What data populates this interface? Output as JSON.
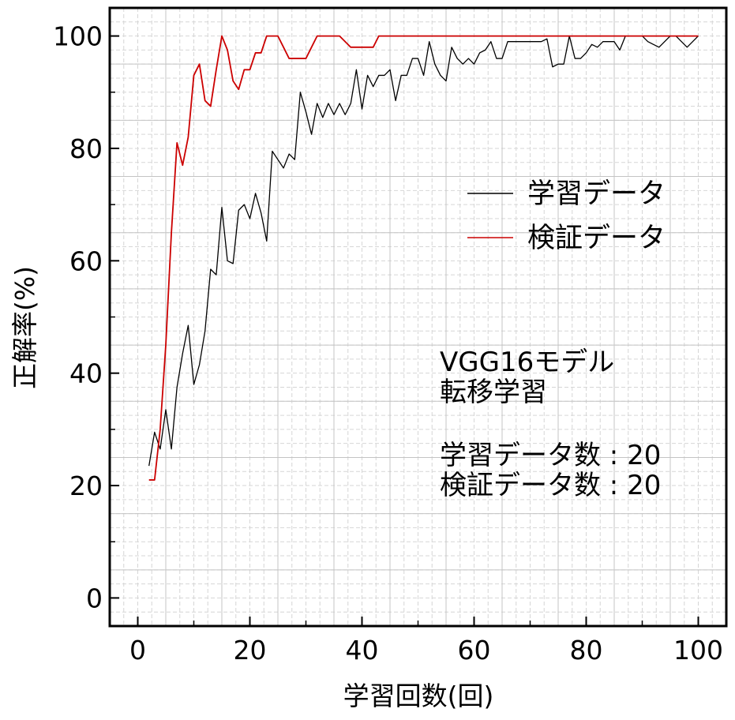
{
  "chart_data": {
    "type": "line",
    "title": "",
    "xlabel": "学習回数(回)",
    "ylabel": "正解率(%)",
    "xlim": [
      -5,
      105
    ],
    "ylim": [
      -5,
      105
    ],
    "xticks": [
      0,
      20,
      40,
      60,
      80,
      100
    ],
    "yticks": [
      0,
      20,
      40,
      60,
      80,
      100
    ],
    "xtick_labels": [
      "0",
      "20",
      "40",
      "60",
      "80",
      "100"
    ],
    "ytick_labels": [
      "0",
      "20",
      "40",
      "60",
      "80",
      "100"
    ],
    "grid": true,
    "legend_position": "right",
    "x": [
      2,
      3,
      4,
      5,
      6,
      7,
      8,
      9,
      10,
      11,
      12,
      13,
      14,
      15,
      16,
      17,
      18,
      19,
      20,
      21,
      22,
      23,
      24,
      25,
      26,
      27,
      28,
      29,
      30,
      31,
      32,
      33,
      34,
      35,
      36,
      37,
      38,
      39,
      40,
      41,
      42,
      43,
      44,
      45,
      46,
      47,
      48,
      49,
      50,
      51,
      52,
      53,
      54,
      55,
      56,
      57,
      58,
      59,
      60,
      61,
      62,
      63,
      64,
      65,
      66,
      67,
      68,
      69,
      70,
      71,
      72,
      73,
      74,
      75,
      76,
      77,
      78,
      79,
      80,
      81,
      82,
      83,
      84,
      85,
      86,
      87,
      88,
      89,
      90,
      91,
      92,
      93,
      94,
      95,
      96,
      97,
      98,
      99,
      100
    ],
    "series": [
      {
        "name": "学習データ",
        "color": "#000000",
        "values": [
          23.5,
          29.5,
          26.5,
          33.5,
          26.5,
          37.5,
          43.5,
          48.5,
          38,
          41.5,
          47.5,
          58.5,
          57.5,
          69.5,
          60,
          59.5,
          69,
          70,
          67.5,
          72,
          68.5,
          63.5,
          79.5,
          78,
          76.5,
          79,
          78,
          90,
          86.5,
          82.5,
          88,
          85.5,
          88,
          86,
          88,
          86,
          88,
          94,
          87,
          93,
          91,
          93,
          93,
          94,
          88.5,
          93,
          93,
          96,
          96,
          93,
          99,
          95,
          93,
          92,
          98,
          96,
          95,
          96,
          95,
          97,
          97.5,
          99,
          96,
          96,
          99,
          99,
          99,
          99,
          99,
          99,
          99,
          99.5,
          94.5,
          95,
          95,
          100,
          96,
          96,
          97,
          98.5,
          98,
          99,
          99,
          99,
          97.5,
          100,
          100,
          100,
          100,
          99,
          98.5,
          98,
          99,
          100,
          100,
          99,
          98,
          99,
          100
        ]
      },
      {
        "name": "検証データ",
        "color": "#cc0000",
        "values": [
          21,
          21,
          30,
          45,
          65,
          81,
          77,
          82,
          93,
          95,
          88.5,
          87.5,
          94,
          100,
          97.5,
          92,
          90.5,
          94,
          94,
          97,
          97,
          100,
          100,
          100,
          98,
          96,
          96,
          96,
          96,
          98,
          100,
          100,
          100,
          100,
          100,
          99,
          98,
          98,
          98,
          98,
          98,
          100,
          100,
          100,
          100,
          100,
          100,
          100,
          100,
          100,
          100,
          100,
          100,
          100,
          100,
          100,
          100,
          100,
          100,
          100,
          100,
          100,
          100,
          100,
          100,
          100,
          100,
          100,
          100,
          100,
          100,
          100,
          100,
          100,
          100,
          100,
          100,
          100,
          100,
          100,
          100,
          100,
          100,
          100,
          100,
          100,
          100,
          100,
          100,
          100,
          100,
          100,
          100,
          100,
          100,
          100,
          100,
          100,
          100
        ]
      }
    ],
    "annotation": {
      "line1": "VGG16モデル",
      "line2": "転移学習",
      "line3": "学習データ数 : 20",
      "line4": "検証データ数 : 20"
    }
  }
}
